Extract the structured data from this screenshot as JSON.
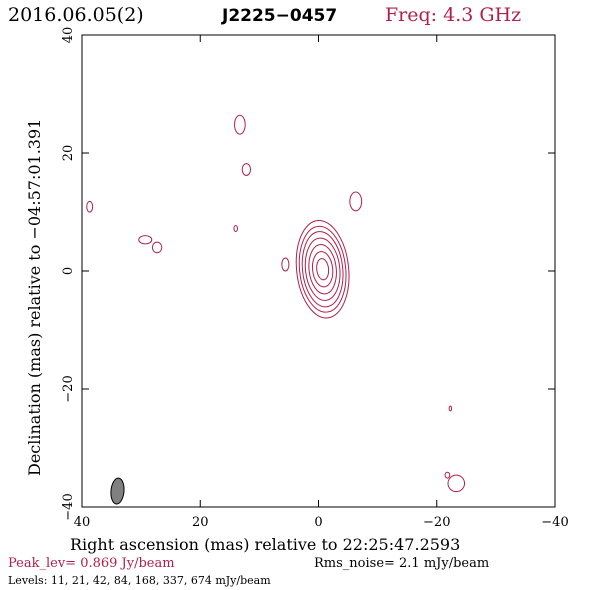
{
  "header": {
    "date": "2016.06.05(2)",
    "source": "J2225−0457",
    "freq": "Freq: 4.3 GHz"
  },
  "footer": {
    "peak": "Peak_lev= 0.869 Jy/beam",
    "rms": "Rms_noise= 2.1 mJy/beam",
    "levels": "Levels: 11, 21, 42, 84, 168, 337, 674 mJy/beam"
  },
  "colors": {
    "contour": "#b0204c",
    "freq": "#b0204c",
    "peak": "#b0204c",
    "beam_fill": "#808080",
    "axis": "#000000"
  },
  "chart_data": {
    "type": "contour",
    "xlabel": "Right ascension (mas) relative to 22:25:47.2593",
    "ylabel": "Declination (mas) relative to −04:57:01.391",
    "xlim": [
      40,
      -40
    ],
    "ylim": [
      -40,
      40
    ],
    "x_ticks": [
      40,
      20,
      0,
      -20,
      -40
    ],
    "y_ticks": [
      -40,
      -20,
      0,
      20,
      40
    ],
    "x_tick_labels": [
      "40",
      "20",
      "0",
      "−20",
      "−40"
    ],
    "y_tick_labels": [
      "−40",
      "−20",
      "0",
      "20",
      "40"
    ],
    "grid": false,
    "contour_levels_mjy": [
      11,
      21,
      42,
      84,
      168,
      337,
      674
    ],
    "core": {
      "center": [
        -0.7,
        0.3
      ],
      "shells": [
        {
          "level": 674,
          "rx": 1.0,
          "ry": 1.8
        },
        {
          "level": 337,
          "rx": 1.7,
          "ry": 3.0
        },
        {
          "level": 168,
          "rx": 2.3,
          "ry": 4.2
        },
        {
          "level": 84,
          "rx": 2.9,
          "ry": 5.3
        },
        {
          "level": 42,
          "rx": 3.4,
          "ry": 6.4
        },
        {
          "level": 21,
          "rx": 3.9,
          "ry": 7.3
        },
        {
          "level": 11,
          "rx": 4.4,
          "ry": 8.3
        }
      ]
    },
    "islands": [
      {
        "x": 13.3,
        "y": 24.8,
        "rx": 0.9,
        "ry": 1.6
      },
      {
        "x": 12.2,
        "y": 17.2,
        "rx": 0.7,
        "ry": 1.0
      },
      {
        "x": 38.7,
        "y": 10.9,
        "rx": 0.5,
        "ry": 0.9
      },
      {
        "x": 14.0,
        "y": 7.2,
        "rx": 0.3,
        "ry": 0.5
      },
      {
        "x": -6.3,
        "y": 11.8,
        "rx": 1.0,
        "ry": 1.6
      },
      {
        "x": 29.3,
        "y": 5.3,
        "rx": 1.1,
        "ry": 0.7
      },
      {
        "x": 27.3,
        "y": 4.0,
        "rx": 0.8,
        "ry": 0.9
      },
      {
        "x": 5.6,
        "y": 1.1,
        "rx": 0.6,
        "ry": 1.1
      },
      {
        "x": -22.3,
        "y": -23.3,
        "rx": 0.2,
        "ry": 0.4
      },
      {
        "x": -23.3,
        "y": -36.0,
        "rx": 1.4,
        "ry": 1.4
      },
      {
        "x": -21.8,
        "y": -34.6,
        "rx": 0.4,
        "ry": 0.5
      }
    ],
    "beam": {
      "x": 34.0,
      "y": -37.3,
      "major_mas": 4.4,
      "minor_mas": 2.2,
      "pa_deg": 5
    }
  }
}
